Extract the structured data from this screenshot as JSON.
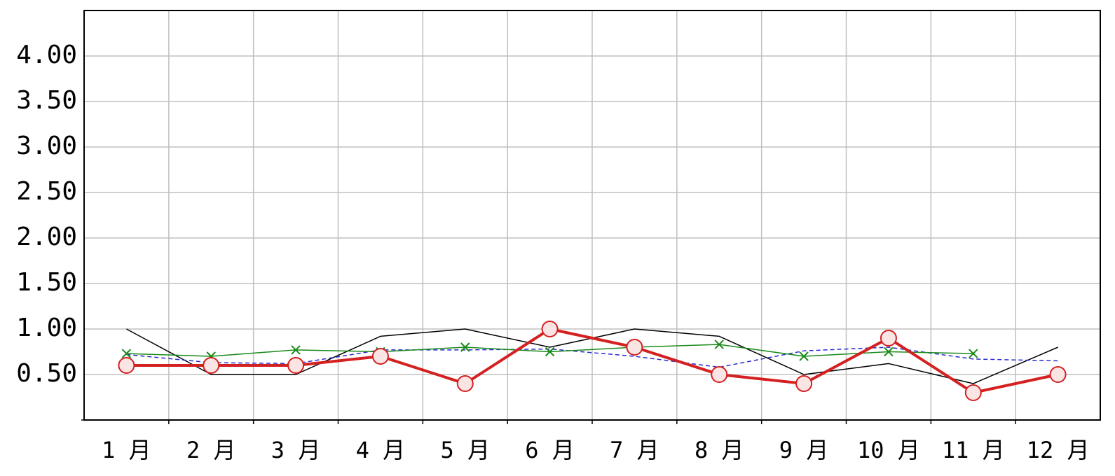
{
  "chart_data": {
    "type": "line",
    "categories": [
      "1 月",
      "2 月",
      "3 月",
      "4 月",
      "5 月",
      "6 月",
      "7 月",
      "8 月",
      "9 月",
      "10 月",
      "11 月",
      "12 月"
    ],
    "ylim": [
      0,
      4.5
    ],
    "yticks": [
      {
        "value": 0.5,
        "label": "0.50"
      },
      {
        "value": 1,
        "label": "1.00"
      },
      {
        "value": 1.5,
        "label": "1.50"
      },
      {
        "value": 2,
        "label": "2.00"
      },
      {
        "value": 2.5,
        "label": "2.50"
      },
      {
        "value": 3,
        "label": "3.00"
      },
      {
        "value": 3.5,
        "label": "3.50"
      },
      {
        "value": 4,
        "label": "4.00"
      }
    ],
    "grid": true,
    "series": [
      {
        "color": "#000000",
        "width": 1.5,
        "dash": false,
        "marker": null,
        "values": [
          1.0,
          0.5,
          0.5,
          0.92,
          1.0,
          0.8,
          1.0,
          0.92,
          0.5,
          0.62,
          0.4,
          0.8
        ]
      },
      {
        "color": "#2a2ad0",
        "width": 1.5,
        "dash": true,
        "marker": null,
        "values": [
          0.72,
          0.63,
          0.62,
          0.77,
          0.77,
          0.78,
          0.7,
          0.58,
          0.76,
          0.8,
          0.67,
          0.65
        ]
      },
      {
        "color": "#1a8a1a",
        "width": 1.5,
        "dash": false,
        "marker": "x",
        "values": [
          0.73,
          0.7,
          0.77,
          0.75,
          0.8,
          0.75,
          0.8,
          0.83,
          0.7,
          0.75,
          0.73,
          null
        ]
      },
      {
        "color": "#d42020",
        "width": 4,
        "dash": false,
        "marker": "circle",
        "values": [
          0.6,
          0.6,
          0.6,
          0.7,
          0.4,
          1.0,
          0.8,
          0.5,
          0.4,
          0.9,
          0.3,
          0.5
        ]
      }
    ]
  }
}
